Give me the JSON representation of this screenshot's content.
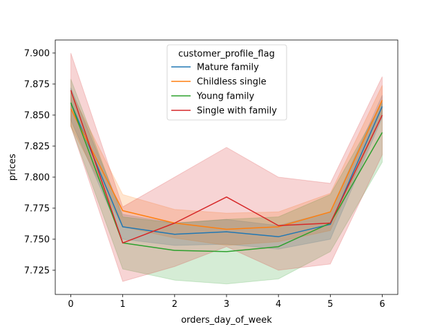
{
  "chart_data": {
    "type": "line",
    "xlabel": "orders_day_of_week",
    "ylabel": "prices",
    "x": [
      0,
      1,
      2,
      3,
      4,
      5,
      6
    ],
    "xlim": [
      -0.3,
      6.3
    ],
    "ylim": [
      7.7055,
      7.9105
    ],
    "xticks": [
      "0",
      "1",
      "2",
      "3",
      "4",
      "5",
      "6"
    ],
    "yticks": [
      "7.725",
      "7.750",
      "7.775",
      "7.800",
      "7.825",
      "7.850",
      "7.875",
      "7.900"
    ],
    "ytick_values": [
      7.725,
      7.75,
      7.775,
      7.8,
      7.825,
      7.85,
      7.875,
      7.9
    ],
    "grid": false,
    "legend": {
      "title": "customer_profile_flag",
      "placement": "upper center"
    },
    "series": [
      {
        "name": "Mature family",
        "color": "#1f77b4",
        "values": [
          7.86,
          7.76,
          7.754,
          7.756,
          7.752,
          7.762,
          7.857
        ],
        "lower": [
          7.846,
          7.75,
          7.745,
          7.746,
          7.742,
          7.75,
          7.848
        ],
        "upper": [
          7.872,
          7.77,
          7.763,
          7.766,
          7.761,
          7.772,
          7.866
        ]
      },
      {
        "name": "Childless single",
        "color": "#ff7f0e",
        "values": [
          7.855,
          7.773,
          7.763,
          7.758,
          7.76,
          7.772,
          7.862
        ],
        "lower": [
          7.841,
          7.76,
          7.751,
          7.745,
          7.748,
          7.757,
          7.85
        ],
        "upper": [
          7.869,
          7.786,
          7.774,
          7.771,
          7.772,
          7.787,
          7.874
        ]
      },
      {
        "name": "Young family",
        "color": "#2ca02c",
        "values": [
          7.86,
          7.747,
          7.741,
          7.74,
          7.744,
          7.763,
          7.836
        ],
        "lower": [
          7.841,
          7.726,
          7.717,
          7.714,
          7.718,
          7.74,
          7.812
        ],
        "upper": [
          7.879,
          7.768,
          7.763,
          7.766,
          7.768,
          7.786,
          7.86
        ]
      },
      {
        "name": "Single with family",
        "color": "#d62728",
        "values": [
          7.87,
          7.747,
          7.763,
          7.784,
          7.761,
          7.763,
          7.85
        ],
        "lower": [
          7.841,
          7.716,
          7.728,
          7.744,
          7.725,
          7.73,
          7.818
        ],
        "upper": [
          7.9,
          7.776,
          7.8,
          7.824,
          7.8,
          7.795,
          7.881
        ]
      }
    ]
  }
}
